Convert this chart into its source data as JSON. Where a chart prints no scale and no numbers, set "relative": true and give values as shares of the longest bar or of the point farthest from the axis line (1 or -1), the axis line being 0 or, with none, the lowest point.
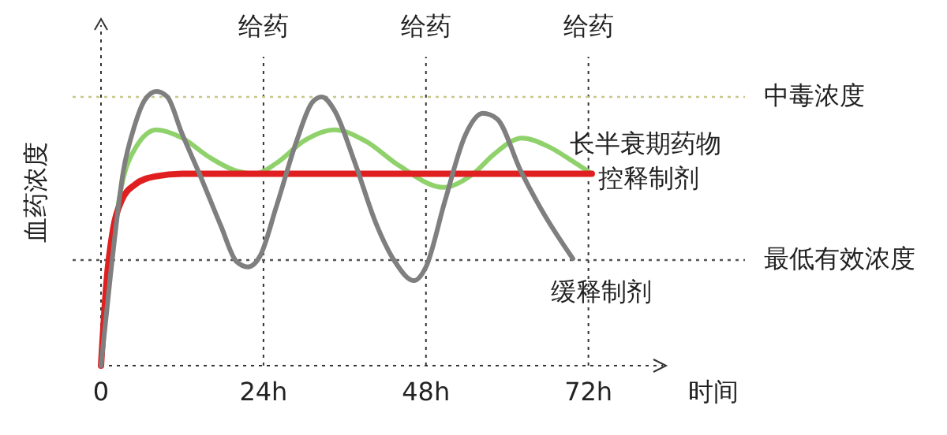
{
  "chart_data": {
    "type": "line",
    "relative": true,
    "xlabel": "时间",
    "ylabel": "血药浓度",
    "xlim": [
      0,
      83
    ],
    "xticks": [
      0,
      {
        "value": 24,
        "label": "24h"
      },
      {
        "value": 48,
        "label": "48h"
      },
      {
        "value": 72,
        "label": "72h"
      }
    ],
    "ref_lines": [
      {
        "axis": "x",
        "value": 24,
        "label": "给药",
        "color": "#333333",
        "line_style": "dotted"
      },
      {
        "axis": "x",
        "value": 48,
        "label": "给药",
        "color": "#333333",
        "line_style": "dotted"
      },
      {
        "axis": "x",
        "value": 72,
        "label": "给药",
        "color": "#333333",
        "line_style": "dotted"
      },
      {
        "axis": "y",
        "value": 0.98,
        "label": "中毒浓度",
        "color": "#c8c88a",
        "line_style": "dotted"
      },
      {
        "axis": "y",
        "value": 0.385,
        "label": "最低有效浓度",
        "color": "#555555",
        "line_style": "dotted"
      }
    ],
    "series": [
      {
        "name": "长半衰期药物",
        "color": "#8fd16a",
        "x": [
          0,
          1.5,
          3,
          5,
          8.2,
          12,
          16,
          20,
          22.8,
          26,
          30,
          34.5,
          39,
          44,
          50.6,
          55,
          58,
          62.2,
          66,
          70,
          72.5
        ],
        "values": [
          0,
          0.4,
          0.65,
          0.79,
          0.86,
          0.83,
          0.76,
          0.71,
          0.7,
          0.74,
          0.82,
          0.86,
          0.82,
          0.73,
          0.65,
          0.7,
          0.77,
          0.83,
          0.8,
          0.74,
          0.7
        ]
      },
      {
        "name": "控释制剂",
        "color": "#e02020",
        "x": [
          0,
          0.8,
          1.8,
          3,
          5,
          8,
          12,
          72.5
        ],
        "values": [
          0,
          0.3,
          0.5,
          0.6,
          0.66,
          0.69,
          0.7,
          0.7
        ]
      },
      {
        "name": "缓释制剂",
        "color": "#7f7f7f",
        "x": [
          0,
          1.4,
          3.3,
          4.9,
          6.5,
          8.2,
          9.8,
          11.9,
          14.7,
          17.7,
          20,
          21.7,
          23.5,
          25.9,
          28.9,
          31.2,
          32.6,
          34.5,
          37.5,
          40.6,
          43.4,
          46.2,
          48,
          50.8,
          53.8,
          56.4,
          58.5,
          62,
          65.5,
          69.7
        ],
        "values": [
          0,
          0.33,
          0.71,
          0.87,
          0.97,
          1,
          0.98,
          0.85,
          0.69,
          0.51,
          0.38,
          0.36,
          0.4,
          0.58,
          0.82,
          0.96,
          0.98,
          0.93,
          0.74,
          0.52,
          0.38,
          0.31,
          0.36,
          0.6,
          0.84,
          0.92,
          0.9,
          0.71,
          0.55,
          0.39
        ]
      }
    ],
    "line_style": "solid",
    "marker": "none",
    "grid": false
  }
}
